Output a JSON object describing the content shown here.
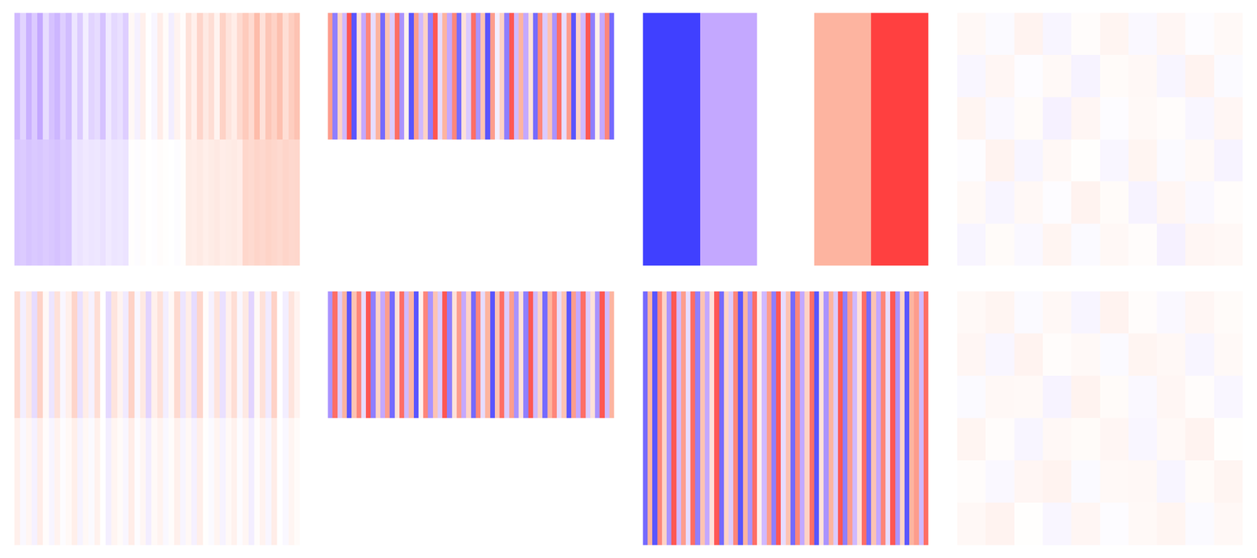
{
  "chart_data": [
    {
      "type": "heatmap",
      "tick_labels": false,
      "zlim": [
        -1,
        1
      ],
      "z": [
        [
          -0.4,
          -0.25,
          -0.45,
          -0.3,
          -0.5,
          -0.2,
          -0.35,
          -0.42,
          -0.28,
          -0.38,
          -0.15,
          -0.3,
          -0.1,
          -0.25,
          -0.2,
          -0.35,
          -0.12,
          -0.22,
          -0.18,
          -0.28,
          0.05,
          -0.08,
          0.1,
          0.0,
          -0.05,
          0.12,
          0.03,
          -0.1,
          0.08,
          0.02,
          0.2,
          0.1,
          0.28,
          0.15,
          0.22,
          0.08,
          0.3,
          0.18,
          0.12,
          0.25,
          0.35,
          0.25,
          0.45,
          0.2,
          0.38,
          0.3,
          0.42,
          0.22,
          0.33,
          0.4
        ],
        [
          -0.32,
          -0.3,
          -0.34,
          -0.31,
          -0.33,
          -0.3,
          -0.32,
          -0.35,
          -0.31,
          -0.33,
          -0.14,
          -0.16,
          -0.13,
          -0.15,
          -0.14,
          -0.17,
          -0.12,
          -0.15,
          -0.14,
          -0.16,
          0.01,
          -0.02,
          0.02,
          0.0,
          -0.01,
          0.02,
          0.01,
          0.0,
          -0.02,
          0.01,
          0.13,
          0.12,
          0.14,
          0.11,
          0.13,
          0.15,
          0.12,
          0.13,
          0.14,
          0.12,
          0.27,
          0.25,
          0.28,
          0.26,
          0.29,
          0.27,
          0.25,
          0.28,
          0.26,
          0.27
        ]
      ]
    },
    {
      "type": "heatmap",
      "tick_labels": false,
      "zlim": [
        -1,
        1
      ],
      "z": [
        [
          0.6,
          -0.7,
          0.3,
          -0.4,
          0.9,
          -0.9,
          0.2,
          -0.5,
          0.7,
          -0.2,
          0.5,
          -0.8,
          0.4,
          -0.3,
          0.8,
          -0.6,
          0.1,
          -0.9,
          0.6,
          -0.4,
          0.3,
          -0.7,
          0.9,
          -0.2,
          0.5,
          -0.5,
          0.7,
          -0.8,
          0.2,
          -0.3,
          0.8,
          -0.6,
          0.4,
          -0.9,
          0.6,
          -0.1,
          0.3,
          -0.7,
          0.9,
          -0.4,
          0.5,
          -0.5,
          0.2,
          -0.8,
          0.7,
          -0.3,
          0.4,
          -0.6,
          0.8,
          -0.2,
          0.6,
          -0.9,
          0.3,
          -0.4,
          0.9,
          -0.7,
          0.1,
          -0.5,
          0.7,
          -0.8
        ],
        [
          null,
          null,
          null,
          null,
          null,
          null,
          null,
          null,
          null,
          null,
          null,
          null,
          null,
          null,
          null,
          null,
          null,
          null,
          null,
          null,
          null,
          null,
          null,
          null,
          null,
          null,
          null,
          null,
          null,
          null,
          null,
          null,
          null,
          null,
          null,
          null,
          null,
          null,
          null,
          null,
          null,
          null,
          null,
          null,
          null,
          null,
          null,
          null,
          null,
          null,
          null,
          null,
          null,
          null,
          null,
          null,
          null,
          null,
          null,
          null
        ]
      ]
    },
    {
      "type": "heatmap",
      "tick_labels": false,
      "zlim": [
        -1,
        1
      ],
      "z": [
        [
          -1,
          -0.5,
          0,
          0.5,
          1
        ]
      ]
    },
    {
      "type": "heatmap",
      "tick_labels": false,
      "zlim": [
        -1,
        1
      ],
      "z": [
        [
          0.05,
          -0.03,
          0.08,
          -0.06,
          0.02,
          0.07,
          -0.04,
          0.06,
          -0.02,
          0.04
        ],
        [
          -0.05,
          0.06,
          -0.02,
          0.04,
          -0.07,
          0.03,
          0.05,
          -0.06,
          0.08,
          -0.03
        ],
        [
          0.07,
          -0.04,
          0.03,
          -0.08,
          0.06,
          -0.02,
          0.04,
          0.02,
          -0.05,
          0.06
        ],
        [
          -0.02,
          0.08,
          -0.06,
          0.05,
          0.01,
          -0.05,
          0.07,
          -0.03,
          0.04,
          -0.07
        ],
        [
          0.04,
          -0.06,
          0.05,
          -0.02,
          0.08,
          0.03,
          -0.07,
          0.06,
          -0.04,
          0.02
        ],
        [
          -0.06,
          0.03,
          -0.04,
          0.07,
          -0.03,
          0.05,
          0.02,
          -0.08,
          0.06,
          0.05
        ]
      ]
    },
    {
      "type": "heatmap",
      "tick_labels": false,
      "zlim": [
        -1,
        1
      ],
      "z": [
        [
          0.25,
          -0.1,
          0.15,
          -0.2,
          0.3,
          0.05,
          -0.15,
          0.2,
          -0.05,
          0.1,
          0.28,
          -0.18,
          0.12,
          -0.08,
          0.22,
          0.0,
          -0.22,
          0.18,
          0.08,
          -0.12,
          0.3,
          -0.05,
          0.15,
          -0.25,
          0.1,
          0.2,
          -0.1,
          0.05,
          0.25,
          -0.15,
          0.12,
          -0.2,
          0.28,
          0.02,
          -0.08,
          0.18,
          -0.18,
          0.1,
          0.22,
          -0.05,
          0.15,
          -0.25,
          0.05,
          0.2,
          -0.12,
          0.3,
          0.0,
          -0.1,
          0.18,
          0.08
        ],
        [
          0.1,
          -0.04,
          0.06,
          -0.08,
          0.12,
          0.02,
          -0.06,
          0.08,
          -0.02,
          0.04,
          0.11,
          -0.07,
          0.05,
          -0.03,
          0.09,
          0.0,
          -0.09,
          0.07,
          0.03,
          -0.05,
          0.12,
          -0.02,
          0.06,
          -0.1,
          0.04,
          0.08,
          -0.04,
          0.02,
          0.1,
          -0.06,
          0.05,
          -0.08,
          0.11,
          0.01,
          -0.03,
          0.07,
          -0.07,
          0.04,
          0.09,
          -0.02,
          0.06,
          -0.1,
          0.02,
          0.08,
          -0.05,
          0.12,
          0.0,
          -0.04,
          0.07,
          0.03
        ]
      ]
    },
    {
      "type": "heatmap",
      "tick_labels": false,
      "zlim": [
        -1,
        1
      ],
      "z": [
        [
          -0.6,
          0.8,
          -0.3,
          0.5,
          -0.9,
          0.4,
          0.7,
          -0.2,
          0.9,
          -0.7,
          0.3,
          -0.5,
          0.6,
          -0.8,
          0.2,
          0.8,
          -0.4,
          0.5,
          -0.9,
          0.1,
          0.7,
          -0.6,
          0.4,
          -0.3,
          0.9,
          -0.7,
          0.2,
          0.6,
          -0.5,
          0.3,
          -0.8,
          0.7,
          -0.2,
          0.5,
          -0.9,
          0.4,
          0.8,
          -0.3,
          0.6,
          -0.6,
          0.2,
          -0.7,
          0.9,
          -0.4,
          0.3,
          -0.8,
          0.5,
          0.7,
          -0.2,
          0.4,
          -0.9,
          0.6,
          -0.5,
          0.8,
          -0.3,
          0.2,
          -0.6,
          0.9,
          -0.4,
          0.5
        ],
        [
          null,
          null,
          null,
          null,
          null,
          null,
          null,
          null,
          null,
          null,
          null,
          null,
          null,
          null,
          null,
          null,
          null,
          null,
          null,
          null,
          null,
          null,
          null,
          null,
          null,
          null,
          null,
          null,
          null,
          null,
          null,
          null,
          null,
          null,
          null,
          null,
          null,
          null,
          null,
          null,
          null,
          null,
          null,
          null,
          null,
          null,
          null,
          null,
          null,
          null,
          null,
          null,
          null,
          null,
          null,
          null,
          null,
          null,
          null,
          null
        ]
      ]
    },
    {
      "type": "heatmap",
      "tick_labels": false,
      "zlim": [
        -1,
        1
      ],
      "z": [
        [
          -0.8,
          0.5,
          -0.9,
          0.7,
          0.3,
          -0.6,
          0.9,
          -0.4,
          0.6,
          -0.2,
          0.8,
          -0.7,
          0.4,
          -0.5,
          0.2,
          0.9,
          -0.8,
          0.3,
          -0.3,
          0.7,
          -0.9,
          0.5,
          -0.6,
          0.8,
          0.1,
          -0.4,
          0.6,
          -0.7,
          0.9,
          -0.2,
          0.4,
          -0.8,
          0.7,
          -0.5,
          0.3,
          0.8,
          -0.9,
          0.2,
          -0.6,
          0.5,
          -0.3,
          0.9,
          -0.7,
          0.6,
          -0.4,
          0.2,
          0.8,
          -0.8,
          0.4,
          -0.5,
          0.7,
          -0.2,
          0.9,
          -0.6,
          0.3,
          -0.9,
          0.5,
          0.6,
          -0.4,
          0.8
        ]
      ]
    },
    {
      "type": "heatmap",
      "tick_labels": false,
      "zlim": [
        -1,
        1
      ],
      "z": [
        [
          0.04,
          0.07,
          -0.03,
          0.05,
          -0.06,
          0.08,
          0.02,
          -0.04,
          0.06,
          0.03
        ],
        [
          0.06,
          -0.05,
          0.08,
          0.02,
          0.04,
          -0.03,
          0.07,
          0.05,
          -0.06,
          0.04
        ],
        [
          -0.03,
          0.05,
          0.04,
          -0.07,
          0.08,
          0.03,
          -0.04,
          0.06,
          0.02,
          -0.05
        ],
        [
          0.07,
          0.02,
          -0.06,
          0.05,
          0.03,
          0.06,
          -0.05,
          0.04,
          0.08,
          0.01
        ],
        [
          0.02,
          -0.04,
          0.06,
          0.08,
          -0.03,
          0.04,
          0.05,
          -0.06,
          0.03,
          0.07
        ],
        [
          0.05,
          0.08,
          0.01,
          -0.05,
          0.06,
          -0.02,
          0.04,
          0.07,
          -0.03,
          0.05
        ]
      ]
    }
  ]
}
